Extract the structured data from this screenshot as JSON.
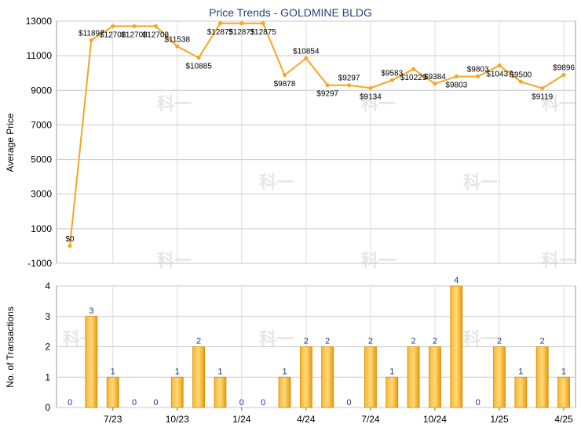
{
  "chart_data": [
    {
      "type": "line",
      "title": "Price Trends - GOLDMINE BLDG",
      "ylabel": "Average Price",
      "ylim": [
        -1000,
        13000
      ],
      "yticks": [
        -1000,
        1000,
        3000,
        5000,
        7000,
        9000,
        11000,
        13000
      ],
      "grid": true,
      "color": "#f5a623",
      "series": [
        {
          "values": [
            0,
            11897,
            12708,
            12708,
            12708,
            11538,
            10885,
            12875,
            12875,
            12875,
            9878,
            10854,
            9297,
            9297,
            9134,
            9583,
            10229,
            9384,
            9803,
            9803,
            10437,
            9500,
            9119,
            9896
          ]
        }
      ],
      "labels": [
        "$0",
        "$11897",
        "$12708",
        "$12708",
        "$12708",
        "$11538",
        "$10885",
        "$12875",
        "$12875",
        "$12875",
        "$9878",
        "$10854",
        "$9297",
        "$9297",
        "$9134",
        "$9583",
        "$10229",
        "$9384",
        "$9803",
        "$9803",
        "$10437",
        "$9500",
        "$9119",
        "$9896"
      ]
    },
    {
      "type": "bar",
      "ylabel": "No. of Transactions",
      "ylim": [
        0,
        4
      ],
      "yticks": [
        0,
        1,
        2,
        3,
        4
      ],
      "grid": true,
      "color": "#f5a623",
      "series": [
        {
          "values": [
            0,
            3,
            1,
            0,
            0,
            1,
            2,
            1,
            0,
            0,
            1,
            2,
            2,
            0,
            2,
            1,
            2,
            2,
            4,
            0,
            2,
            1,
            2,
            1
          ]
        }
      ],
      "x_tick_labels": [
        {
          "index": 2,
          "label": "7/23"
        },
        {
          "index": 5,
          "label": "10/23"
        },
        {
          "index": 8,
          "label": "1/24"
        },
        {
          "index": 11,
          "label": "4/24"
        },
        {
          "index": 14,
          "label": "7/24"
        },
        {
          "index": 17,
          "label": "10/24"
        },
        {
          "index": 20,
          "label": "1/25"
        },
        {
          "index": 23,
          "label": "4/25"
        }
      ]
    }
  ],
  "watermark_text": "科一"
}
